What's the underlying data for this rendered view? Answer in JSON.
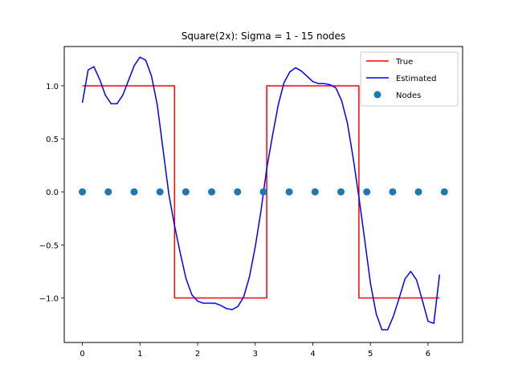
{
  "chart_data": {
    "type": "line",
    "title": "Square(2x): Sigma = 1 - 15 nodes",
    "xlabel": "",
    "ylabel": "",
    "xlim": [
      -0.315,
      6.6
    ],
    "ylim": [
      -1.42,
      1.37
    ],
    "xticks": [
      0,
      1,
      2,
      3,
      4,
      5,
      6
    ],
    "xtick_labels": [
      "0",
      "1",
      "2",
      "3",
      "4",
      "5",
      "6"
    ],
    "yticks": [
      1.0,
      0.5,
      0.0,
      -0.5,
      -1.0
    ],
    "ytick_labels": [
      "1.0",
      "0.5",
      "0.0",
      "−0.5",
      "−1.0"
    ],
    "grid": false,
    "legend_position": "top-right",
    "series": [
      {
        "name": "True",
        "kind": "line",
        "color": "#ff0000",
        "x": [
          0,
          1.5,
          1.5,
          1.6,
          1.6,
          3.1,
          3.1,
          3.2,
          3.2,
          4.7,
          4.7,
          4.8,
          4.8,
          6.2
        ],
        "y": [
          1,
          1,
          1,
          1,
          -1,
          -1,
          -1,
          -1,
          1,
          1,
          1,
          1,
          -1,
          -1
        ]
      },
      {
        "name": "Estimated",
        "kind": "line",
        "color": "#0000ff",
        "x": [
          0,
          0.1,
          0.2,
          0.3,
          0.4,
          0.5,
          0.6,
          0.7,
          0.8,
          0.9,
          1.0,
          1.1,
          1.2,
          1.3,
          1.4,
          1.5,
          1.6,
          1.7,
          1.8,
          1.9,
          2.0,
          2.1,
          2.2,
          2.3,
          2.4,
          2.5,
          2.6,
          2.7,
          2.8,
          2.9,
          3.0,
          3.1,
          3.2,
          3.3,
          3.4,
          3.5,
          3.6,
          3.7,
          3.8,
          3.9,
          4.0,
          4.1,
          4.2,
          4.3,
          4.4,
          4.5,
          4.6,
          4.7,
          4.8,
          4.9,
          5.0,
          5.1,
          5.2,
          5.3,
          5.4,
          5.5,
          5.6,
          5.7,
          5.8,
          5.9,
          6.0,
          6.1,
          6.2
        ],
        "y": [
          0.84,
          1.15,
          1.18,
          1.06,
          0.91,
          0.83,
          0.83,
          0.91,
          1.05,
          1.19,
          1.27,
          1.24,
          1.09,
          0.82,
          0.4,
          -0.02,
          -0.32,
          -0.58,
          -0.82,
          -0.97,
          -1.03,
          -1.05,
          -1.05,
          -1.05,
          -1.07,
          -1.1,
          -1.11,
          -1.08,
          -0.99,
          -0.8,
          -0.52,
          -0.18,
          0.22,
          0.53,
          0.82,
          1.03,
          1.13,
          1.17,
          1.14,
          1.09,
          1.04,
          1.02,
          1.02,
          1.01,
          0.98,
          0.86,
          0.65,
          0.32,
          -0.05,
          -0.45,
          -0.86,
          -1.15,
          -1.3,
          -1.3,
          -1.17,
          -1.0,
          -0.82,
          -0.75,
          -0.83,
          -1.02,
          -1.22,
          -1.24,
          -0.78
        ]
      },
      {
        "name": "Nodes",
        "kind": "scatter",
        "color": "#1f77b4",
        "x": [
          0,
          0.449,
          0.898,
          1.346,
          1.795,
          2.244,
          2.693,
          3.142,
          3.59,
          4.039,
          4.488,
          4.937,
          5.386,
          5.834,
          6.283
        ],
        "y": [
          0,
          0,
          0,
          0,
          0,
          0,
          0,
          0,
          0,
          0,
          0,
          0,
          0,
          0,
          0
        ]
      }
    ]
  }
}
